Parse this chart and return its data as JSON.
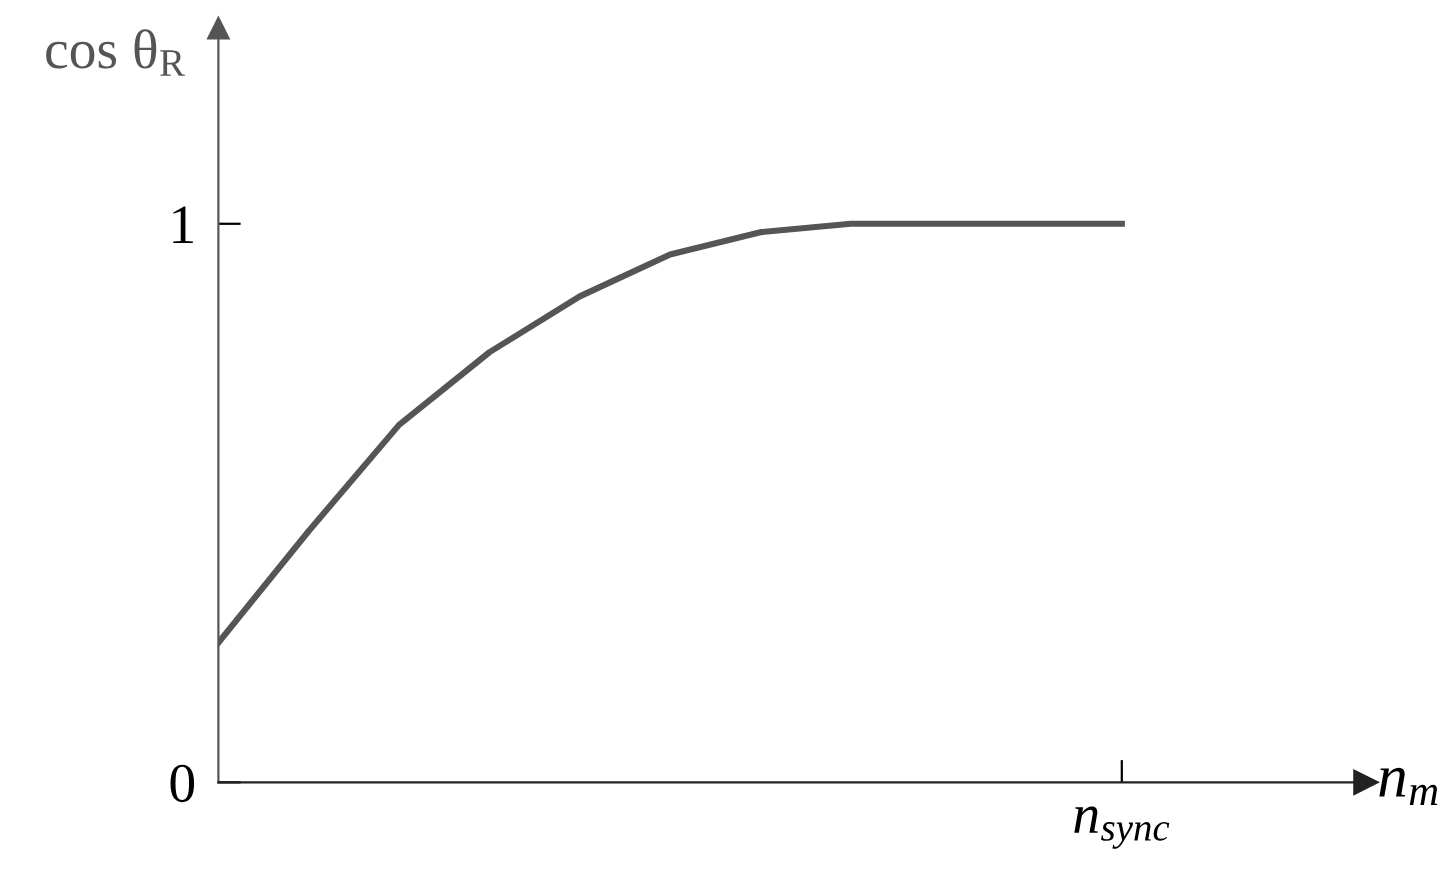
{
  "chart_data": {
    "type": "line",
    "xlabel": "n$_{m}$",
    "ylabel": "cos θ$_{R}$",
    "categories": [
      null,
      null,
      null,
      null,
      null,
      null,
      null,
      null,
      null,
      null,
      "n$_{sync}$"
    ],
    "series": [
      {
        "color": "#555555",
        "values": [
          0.25,
          0.45,
          0.64,
          0.77,
          0.87,
          0.945,
          0.985,
          1.0,
          1.0,
          1.0,
          1.0
        ]
      }
    ],
    "ylim": [
      0,
      1.35
    ],
    "yticks": [
      0,
      1
    ],
    "grid": false,
    "legend": false,
    "marker": "none",
    "line_style": "solid"
  }
}
